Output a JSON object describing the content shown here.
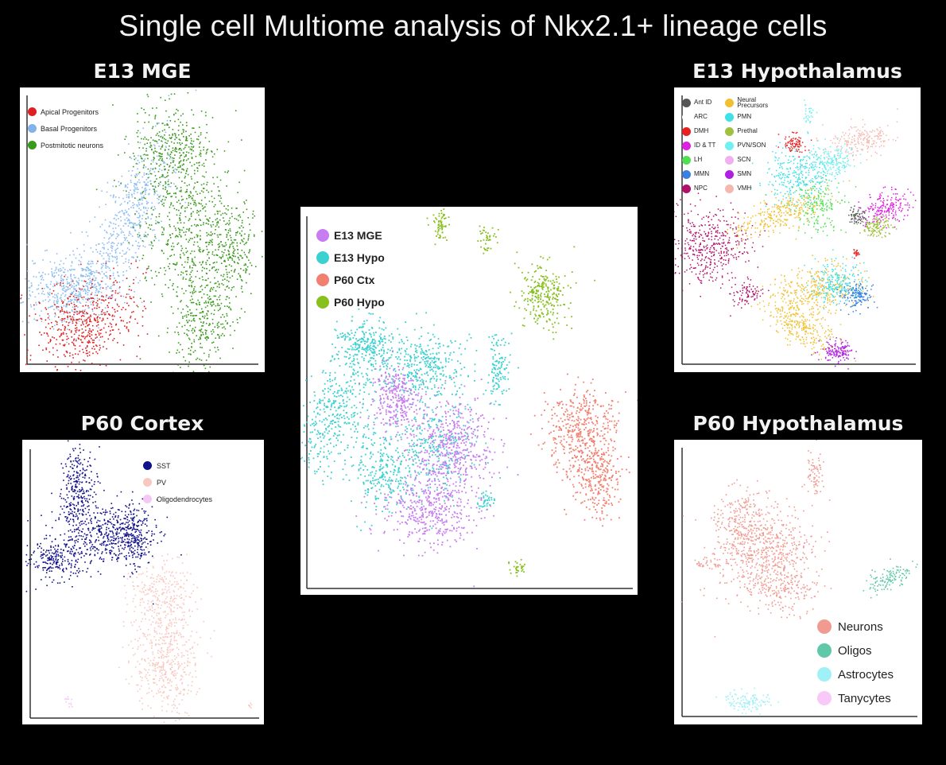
{
  "title": "Single cell Multiome analysis of Nkx2.1+ lineage cells",
  "panels": {
    "e13mge": {
      "title": "E13 MGE",
      "legend": [
        {
          "label": "Apical Progenitors",
          "color": "#e02020"
        },
        {
          "label": "Basal Progenitors",
          "color": "#7fb3ea"
        },
        {
          "label": "Postmitotic neurons",
          "color": "#3a9a1e"
        }
      ]
    },
    "combined": {
      "title": "",
      "legend": [
        {
          "label": "E13 MGE",
          "color": "#c77cf0"
        },
        {
          "label": "E13 Hypo",
          "color": "#3cd0d0"
        },
        {
          "label": "P60 Ctx",
          "color": "#f08070"
        },
        {
          "label": "P60 Hypo",
          "color": "#88c020"
        }
      ]
    },
    "e13hypo": {
      "title": "E13 Hypothalamus",
      "legend": [
        {
          "label": "Ant ID",
          "color": "#555555"
        },
        {
          "label": "Neural Precursors",
          "color": "#f0c030"
        },
        {
          "label": "ARC",
          "color": "#ffffff"
        },
        {
          "label": "PMN",
          "color": "#40e0e8"
        },
        {
          "label": "DMH",
          "color": "#e82020"
        },
        {
          "label": "Prethal",
          "color": "#a0c040"
        },
        {
          "label": "ID & TT",
          "color": "#e020e0"
        },
        {
          "label": "PVN/SON",
          "color": "#70f0f0"
        },
        {
          "label": "LH",
          "color": "#50e050"
        },
        {
          "label": "SCN",
          "color": "#f0b0f0"
        },
        {
          "label": "MMN",
          "color": "#3a80e0"
        },
        {
          "label": "SMN",
          "color": "#b020e0"
        },
        {
          "label": "NPC",
          "color": "#b0106a"
        },
        {
          "label": "VMH",
          "color": "#f5b8b0"
        }
      ]
    },
    "p60cortex": {
      "title": "P60 Cortex",
      "legend": [
        {
          "label": "SST",
          "color": "#10108a"
        },
        {
          "label": "PV",
          "color": "#f8c8c0"
        },
        {
          "label": "Oligodendrocytes",
          "color": "#f4c8f4"
        }
      ]
    },
    "p60hypo": {
      "title": "P60 Hypothalamus",
      "legend": [
        {
          "label": "Neurons",
          "color": "#f09a90"
        },
        {
          "label": "Oligos",
          "color": "#60c8a8"
        },
        {
          "label": "Astrocytes",
          "color": "#a0f0f8"
        },
        {
          "label": "Tanycytes",
          "color": "#f8c8f8"
        }
      ]
    }
  },
  "chart_data": [
    {
      "type": "scatter",
      "panel": "e13mge",
      "title": "E13 MGE",
      "series": [
        {
          "name": "Apical Progenitors"
        },
        {
          "name": "Basal Progenitors"
        },
        {
          "name": "Postmitotic neurons"
        }
      ]
    },
    {
      "type": "scatter",
      "panel": "combined",
      "series": [
        {
          "name": "E13 MGE"
        },
        {
          "name": "E13 Hypo"
        },
        {
          "name": "P60 Ctx"
        },
        {
          "name": "P60 Hypo"
        }
      ]
    },
    {
      "type": "scatter",
      "panel": "e13hypo",
      "title": "E13 Hypothalamus",
      "series": [
        {
          "name": "Ant ID"
        },
        {
          "name": "Neural Precursors"
        },
        {
          "name": "ARC"
        },
        {
          "name": "PMN"
        },
        {
          "name": "DMH"
        },
        {
          "name": "Prethal"
        },
        {
          "name": "ID & TT"
        },
        {
          "name": "PVN/SON"
        },
        {
          "name": "LH"
        },
        {
          "name": "SCN"
        },
        {
          "name": "MMN"
        },
        {
          "name": "SMN"
        },
        {
          "name": "NPC"
        },
        {
          "name": "VMH"
        }
      ]
    },
    {
      "type": "scatter",
      "panel": "p60cortex",
      "title": "P60 Cortex",
      "series": [
        {
          "name": "SST"
        },
        {
          "name": "PV"
        },
        {
          "name": "Oligodendrocytes"
        }
      ]
    },
    {
      "type": "scatter",
      "panel": "p60hypo",
      "title": "P60 Hypothalamus",
      "series": [
        {
          "name": "Neurons"
        },
        {
          "name": "Oligos"
        },
        {
          "name": "Astrocytes"
        },
        {
          "name": "Tanycytes"
        }
      ]
    }
  ]
}
